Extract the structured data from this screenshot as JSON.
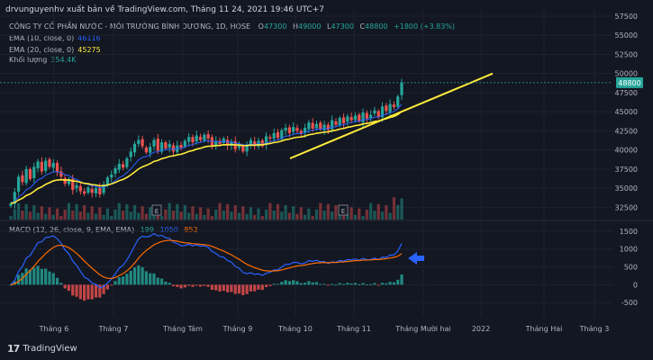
{
  "header": {
    "publish_line": "drvunguyenhv xuất bản về TradingView.com, Tháng 11 24, 2021 19:46 UTC+7",
    "symbol_line_prefix": "CÔNG TY CỔ PHẦN NƯỚC - MÔI TRƯỜNG BÌNH DƯƠNG, 1D, HOSE",
    "o_label": "O",
    "o_value": "47300",
    "h_label": "H",
    "h_value": "49000",
    "l_label": "L",
    "l_value": "47300",
    "c_label": "C",
    "c_value": "48800",
    "change": "+1800 (+3.83%)"
  },
  "legend": {
    "ema10_label": "EMA (10, close, 0)",
    "ema10_value": "46116",
    "ema20_label": "EMA (20, close, 0)",
    "ema20_value": "45275",
    "volume_label": "Khối lượng",
    "volume_value": "354.4K"
  },
  "macd_legend": {
    "label": "MACD (12, 26, close, 9, EMA, EMA)",
    "hist_value": "199",
    "macd_value": "1050",
    "signal_value": "852"
  },
  "footer": {
    "brand": "TradingView",
    "logo_text": "17"
  },
  "price_badge": "48800",
  "markers": {
    "earnings_letter": "E"
  },
  "colors": {
    "background": "#131722",
    "up": "#26a69a",
    "down": "#ef5350",
    "ema10": "#2962ff",
    "ema20": "#ffeb3b",
    "trendline": "#ffeb3b",
    "macd": "#2962ff",
    "signal": "#ff6d00",
    "arrow": "#2962ff"
  },
  "chart_data": [
    {
      "type": "candlestick",
      "title": "CÔNG TY CỔ PHẦN NƯỚC - MÔI TRƯỜNG BÌNH DƯƠNG, 1D, HOSE",
      "y_axis_ticks": [
        32500,
        35000,
        37500,
        40000,
        42500,
        45000,
        47500,
        50000,
        52500,
        55000,
        57500
      ],
      "ylim": [
        30900,
        58200
      ],
      "x_axis_labels": [
        "Tháng 6",
        "Tháng 7",
        "Tháng Tám",
        "Tháng 9",
        "Tháng 10",
        "Tháng 11",
        "Tháng Mười hai",
        "2022",
        "Tháng Hai",
        "Tháng 3"
      ],
      "close_series": [
        33000,
        34500,
        36500,
        35800,
        37500,
        36200,
        37800,
        38500,
        37200,
        38600,
        37800,
        38300,
        37100,
        36500,
        35600,
        36200,
        34800,
        35400,
        34600,
        34300,
        35100,
        34400,
        35000,
        34200,
        35500,
        36400,
        36800,
        37600,
        38200,
        37700,
        38900,
        39800,
        40800,
        41300,
        40500,
        39700,
        40400,
        41300,
        39900,
        41000,
        40200,
        40800,
        39800,
        40600,
        40300,
        41200,
        41700,
        41000,
        41900,
        41300,
        42000,
        41500,
        40600,
        41200,
        40800,
        41500,
        40600,
        41100,
        40100,
        40700,
        39800,
        40600,
        41300,
        40500,
        41200,
        40500,
        41800,
        41500,
        42200,
        41600,
        42600,
        42900,
        42200,
        43000,
        42500,
        42100,
        42900,
        43600,
        42800,
        43400,
        42700,
        43300,
        42600,
        43900,
        43300,
        44200,
        43500,
        44400,
        43900,
        44500,
        43800,
        44900,
        44100,
        44600,
        45200,
        44300,
        45700,
        45100,
        46000,
        45600,
        47000,
        48800
      ],
      "ema10": 46116,
      "ema20": 45275,
      "last_close": 48800,
      "trendline": [
        {
          "date": "Tháng 10",
          "price": 38900
        },
        {
          "date": "Tháng Mười hai",
          "price": 50000
        }
      ]
    },
    {
      "type": "bar",
      "title": "Khối lượng",
      "last_value": "354.4K"
    },
    {
      "type": "line",
      "title": "MACD (12, 26, close, 9, EMA, EMA)",
      "y_axis_ticks": [
        -500,
        0,
        500,
        1000,
        1500
      ],
      "ylim": [
        -900,
        1750
      ],
      "series": [
        {
          "name": "MACD",
          "last_value": 1050
        },
        {
          "name": "Signal",
          "last_value": 852
        },
        {
          "name": "Histogram",
          "last_value": 199
        }
      ]
    }
  ]
}
